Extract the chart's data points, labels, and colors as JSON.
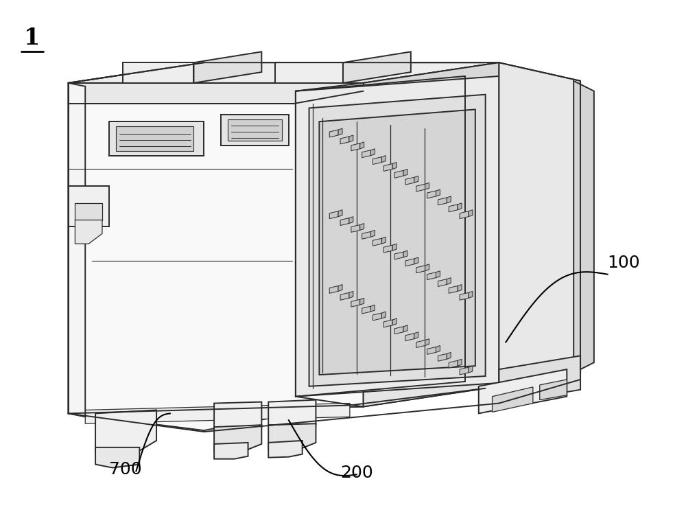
{
  "background_color": "#ffffff",
  "figsize": [
    10.0,
    7.46
  ],
  "dpi": 100,
  "label_1": "1",
  "label_100": "100",
  "label_200": "200",
  "label_700": "700",
  "line_color": "#2a2a2a",
  "fill_light": "#f5f5f5",
  "fill_mid": "#e8e8e8",
  "fill_shade": "#d8d8d8",
  "lw_main": 1.4,
  "lw_thin": 0.9,
  "font_size_label": 18,
  "font_size_1": 24
}
